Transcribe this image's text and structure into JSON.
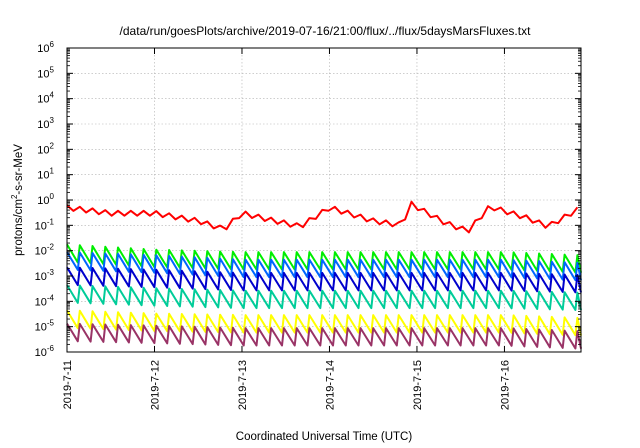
{
  "chart_data": {
    "type": "line",
    "title": "/data/run/goesPlots/archive/2019-07-16/21:00/flux/../flux/5daysMarsFluxes.txt",
    "xlabel": "Coordinated Universal Time (UTC)",
    "ylabel": {
      "before": "protons/cm",
      "sup": "2",
      "after": "-s-sr-MeV"
    },
    "y_scale": "log",
    "ylim": [
      1e-06,
      1000000.0
    ],
    "y_ticks": [
      {
        "base": "10",
        "exp": "-6",
        "value": 1e-06
      },
      {
        "base": "10",
        "exp": "-5",
        "value": 1e-05
      },
      {
        "base": "10",
        "exp": "-4",
        "value": 0.0001
      },
      {
        "base": "10",
        "exp": "-3",
        "value": 0.001
      },
      {
        "base": "10",
        "exp": "-2",
        "value": 0.01
      },
      {
        "base": "10",
        "exp": "-1",
        "value": 0.1
      },
      {
        "base": "10",
        "exp": "0",
        "value": 1
      },
      {
        "base": "10",
        "exp": "1",
        "value": 10.0
      },
      {
        "base": "10",
        "exp": "2",
        "value": 100.0
      },
      {
        "base": "10",
        "exp": "3",
        "value": 1000.0
      },
      {
        "base": "10",
        "exp": "4",
        "value": 10000.0
      },
      {
        "base": "10",
        "exp": "5",
        "value": 100000.0
      },
      {
        "base": "10",
        "exp": "6",
        "value": 1000000.0
      }
    ],
    "xlim": [
      "2019-07-11T00:00",
      "2019-07-16T21:00"
    ],
    "x_ticks": [
      {
        "label": "2019-7-11",
        "value": "2019-07-11T00:00"
      },
      {
        "label": "2019-7-12",
        "value": "2019-07-12T00:00"
      },
      {
        "label": "2019-7-13",
        "value": "2019-07-13T00:00"
      },
      {
        "label": "2019-7-14",
        "value": "2019-07-14T00:00"
      },
      {
        "label": "2019-7-15",
        "value": "2019-07-15T00:00"
      },
      {
        "label": "2019-7-16",
        "value": "2019-07-16T00:00"
      }
    ],
    "grid": true,
    "legend": "none",
    "sawtooth_period_hours": 3.5,
    "series": [
      {
        "color": "#ff0000",
        "values": [
          [
            "2019-07-11T00:00",
            0.5
          ],
          [
            "2019-07-11T12:00",
            0.3
          ],
          [
            "2019-07-12T00:00",
            0.3
          ],
          [
            "2019-07-12T12:00",
            0.15
          ],
          [
            "2019-07-12T19:00",
            0.07
          ],
          [
            "2019-07-13T00:00",
            0.3
          ],
          [
            "2019-07-13T09:00",
            0.15
          ],
          [
            "2019-07-13T16:00",
            0.09
          ],
          [
            "2019-07-14T00:00",
            0.5
          ],
          [
            "2019-07-14T12:00",
            0.15
          ],
          [
            "2019-07-14T20:00",
            0.1
          ],
          [
            "2019-07-14T22:00",
            0.75
          ],
          [
            "2019-07-15T08:00",
            0.12
          ],
          [
            "2019-07-15T14:00",
            0.06
          ],
          [
            "2019-07-15T20:00",
            0.55
          ],
          [
            "2019-07-16T06:00",
            0.2
          ],
          [
            "2019-07-16T12:00",
            0.09
          ],
          [
            "2019-07-16T21:00",
            0.5
          ]
        ]
      },
      {
        "color": "#00ee00",
        "values": [
          [
            "2019-07-11T00:00",
            0.008
          ],
          [
            "2019-07-12T00:00",
            0.005
          ],
          [
            "2019-07-13T00:00",
            0.004
          ],
          [
            "2019-07-14T00:00",
            0.004
          ],
          [
            "2019-07-15T00:00",
            0.004
          ],
          [
            "2019-07-16T00:00",
            0.004
          ],
          [
            "2019-07-16T21:00",
            0.003
          ]
        ]
      },
      {
        "color": "#0066ff",
        "values": [
          [
            "2019-07-11T00:00",
            0.004
          ],
          [
            "2019-07-12T00:00",
            0.003
          ],
          [
            "2019-07-13T00:00",
            0.002
          ],
          [
            "2019-07-14T00:00",
            0.002
          ],
          [
            "2019-07-15T00:00",
            0.002
          ],
          [
            "2019-07-16T00:00",
            0.002
          ],
          [
            "2019-07-16T21:00",
            0.0015
          ]
        ]
      },
      {
        "color": "#0000cc",
        "values": [
          [
            "2019-07-11T00:00",
            0.001
          ],
          [
            "2019-07-12T00:00",
            0.0008
          ],
          [
            "2019-07-13T00:00",
            0.0006
          ],
          [
            "2019-07-14T00:00",
            0.0006
          ],
          [
            "2019-07-15T00:00",
            0.0006
          ],
          [
            "2019-07-16T00:00",
            0.0006
          ],
          [
            "2019-07-16T21:00",
            0.0005
          ]
        ]
      },
      {
        "color": "#00cc99",
        "values": [
          [
            "2019-07-11T00:00",
            0.0002
          ],
          [
            "2019-07-12T00:00",
            0.00015
          ],
          [
            "2019-07-13T00:00",
            0.00012
          ],
          [
            "2019-07-14T00:00",
            0.00012
          ],
          [
            "2019-07-15T00:00",
            0.00012
          ],
          [
            "2019-07-16T00:00",
            0.00012
          ],
          [
            "2019-07-16T21:00",
            0.0001
          ]
        ]
      },
      {
        "color": "#ffff00",
        "values": [
          [
            "2019-07-11T00:00",
            2e-05
          ],
          [
            "2019-07-12T00:00",
            1.5e-05
          ],
          [
            "2019-07-13T00:00",
            1.3e-05
          ],
          [
            "2019-07-14T00:00",
            1.3e-05
          ],
          [
            "2019-07-15T00:00",
            1.3e-05
          ],
          [
            "2019-07-16T00:00",
            1.3e-05
          ],
          [
            "2019-07-16T21:00",
            1e-05
          ]
        ]
      },
      {
        "color": "#993366",
        "values": [
          [
            "2019-07-11T00:00",
            6e-06
          ],
          [
            "2019-07-12T00:00",
            5e-06
          ],
          [
            "2019-07-13T00:00",
            4e-06
          ],
          [
            "2019-07-14T00:00",
            4e-06
          ],
          [
            "2019-07-15T00:00",
            4e-06
          ],
          [
            "2019-07-16T00:00",
            4e-06
          ],
          [
            "2019-07-16T21:00",
            3e-06
          ]
        ]
      }
    ]
  }
}
